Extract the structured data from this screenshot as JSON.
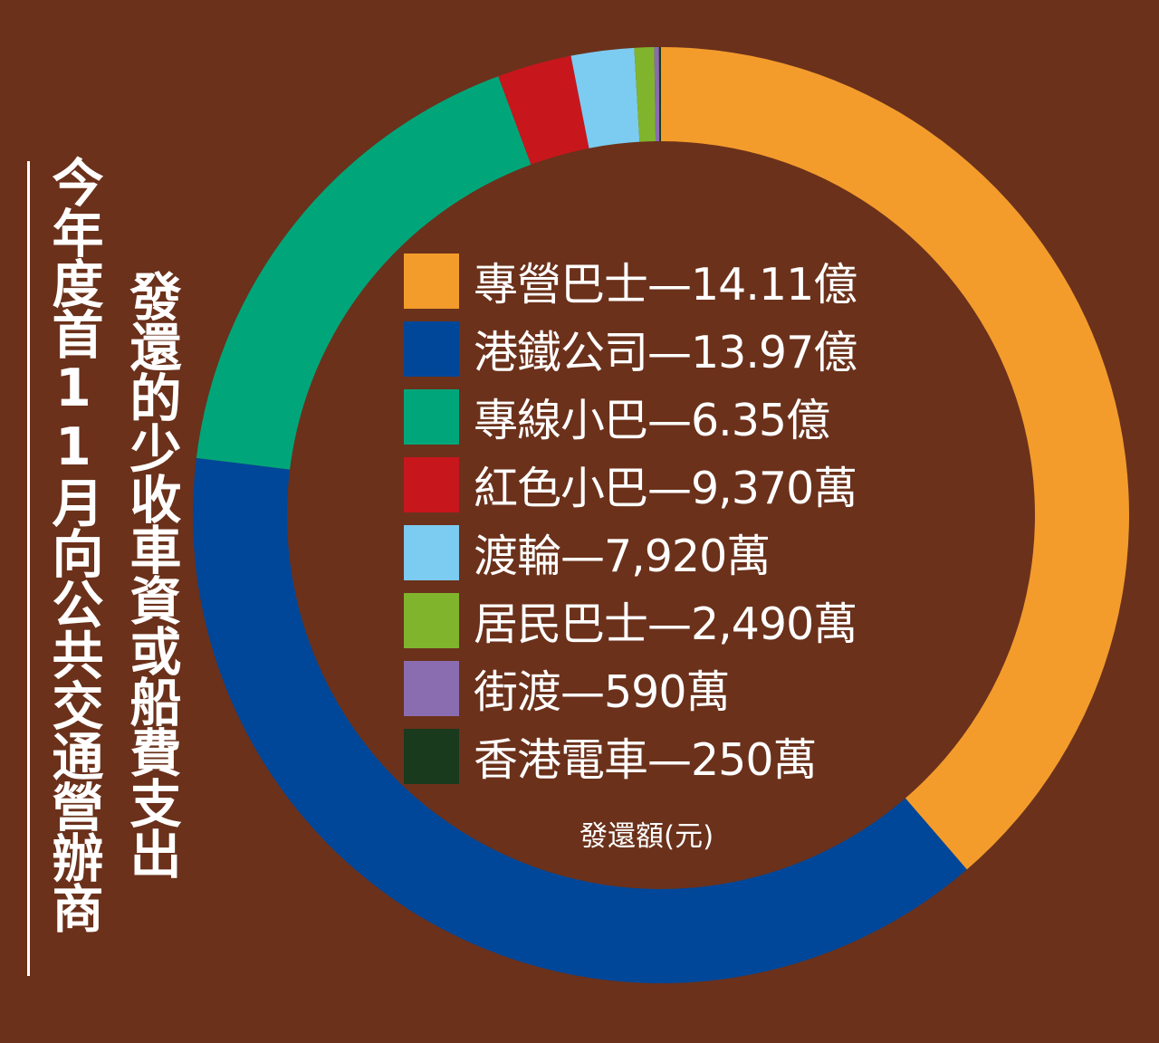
{
  "title": {
    "line1": "今年度首11月向公共交通營辦商",
    "line2": "發還的少收車資或船費支出"
  },
  "unit_label": "發還額(元)",
  "chart_data": {
    "type": "pie",
    "donut": true,
    "unit": "發還額(元)",
    "categories": [
      "專營巴士",
      "港鐵公司",
      "專線小巴",
      "紅色小巴",
      "渡輪",
      "居民巴士",
      "街渡",
      "香港電車"
    ],
    "values": [
      1411000000,
      1397000000,
      635000000,
      93700000,
      79200000,
      24900000,
      5900000,
      2500000
    ],
    "colors": [
      "#f39c2c",
      "#00479a",
      "#00a67a",
      "#c8161d",
      "#7ccbf0",
      "#80b42d",
      "#8a6cb0",
      "#1a3a1e"
    ],
    "labels": [
      "專營巴士—14.11億",
      "港鐵公司—13.97億",
      "專線小巴—6.35億",
      "紅色小巴—9,370萬",
      "渡輪—7,920萬",
      "居民巴士—2,490萬",
      "街渡—590萬",
      "香港電車—250萬"
    ]
  }
}
